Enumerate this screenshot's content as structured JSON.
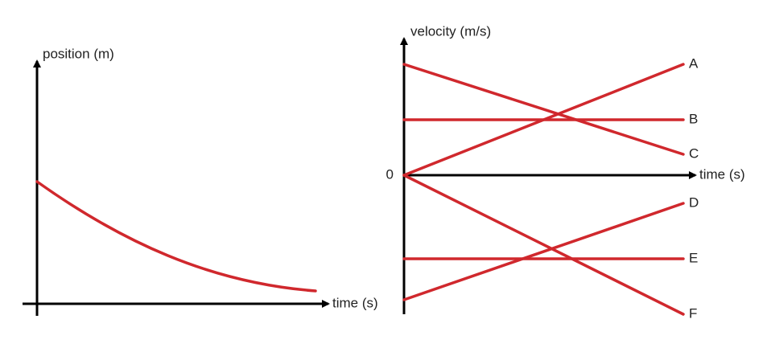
{
  "position_graph": {
    "y_axis_label": "position (m)",
    "x_axis_label": "time (s)"
  },
  "velocity_graph": {
    "y_axis_label": "velocity (m/s)",
    "x_axis_label": "time (s)",
    "origin_label": "0",
    "lines": [
      {
        "label": "A"
      },
      {
        "label": "B"
      },
      {
        "label": "C"
      },
      {
        "label": "D"
      },
      {
        "label": "E"
      },
      {
        "label": "F"
      }
    ]
  }
}
